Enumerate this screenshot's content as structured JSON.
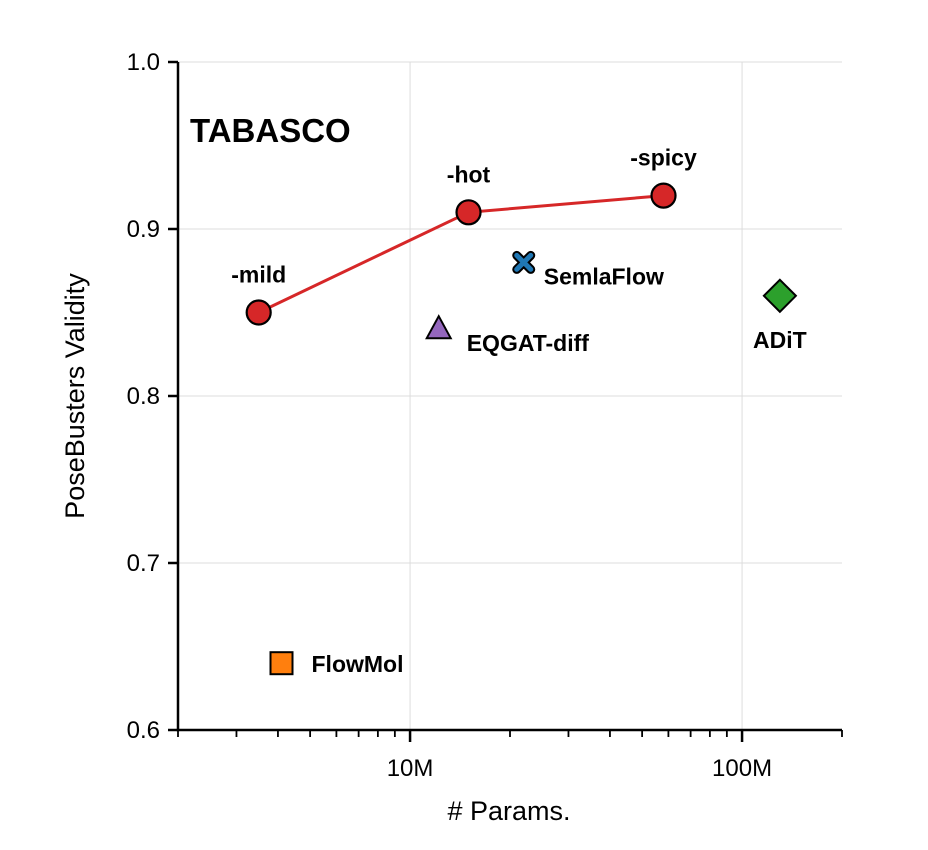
{
  "chart_data": {
    "type": "scatter",
    "title": "TABASCO",
    "xlabel": "# Params.",
    "ylabel": "PoseBusters Validity",
    "xscale": "log",
    "xlim": [
      2000000,
      200000000
    ],
    "ylim": [
      0.6,
      1.0
    ],
    "grid": true,
    "yticks": [
      {
        "value": 0.6,
        "label": "0.6"
      },
      {
        "value": 0.7,
        "label": "0.7"
      },
      {
        "value": 0.8,
        "label": "0.8"
      },
      {
        "value": 0.9,
        "label": "0.9"
      },
      {
        "value": 1.0,
        "label": "1.0"
      }
    ],
    "xticks": [
      {
        "value": 10000000,
        "label": "10M"
      },
      {
        "value": 100000000,
        "label": "100M"
      }
    ],
    "series": [
      {
        "name": "TABASCO",
        "marker": "circle",
        "color": "#d62728",
        "line": true,
        "points": [
          {
            "x": 3500000,
            "y": 0.85,
            "label": "-mild"
          },
          {
            "x": 15000000,
            "y": 0.91,
            "label": "-hot"
          },
          {
            "x": 58000000,
            "y": 0.92,
            "label": "-spicy"
          }
        ]
      },
      {
        "name": "SemlaFlow",
        "marker": "x",
        "color": "#1f77b4",
        "points": [
          {
            "x": 22000000,
            "y": 0.88,
            "label": "SemlaFlow"
          }
        ]
      },
      {
        "name": "EQGAT-diff",
        "marker": "triangle",
        "color": "#9467bd",
        "points": [
          {
            "x": 12200000,
            "y": 0.84,
            "label": "EQGAT-diff"
          }
        ]
      },
      {
        "name": "ADiT",
        "marker": "diamond",
        "color": "#2ca02c",
        "points": [
          {
            "x": 130000000,
            "y": 0.86,
            "label": "ADiT"
          }
        ]
      },
      {
        "name": "FlowMol",
        "marker": "square",
        "color": "#ff7f0e",
        "points": [
          {
            "x": 4100000,
            "y": 0.64,
            "label": "FlowMol"
          }
        ]
      }
    ]
  }
}
